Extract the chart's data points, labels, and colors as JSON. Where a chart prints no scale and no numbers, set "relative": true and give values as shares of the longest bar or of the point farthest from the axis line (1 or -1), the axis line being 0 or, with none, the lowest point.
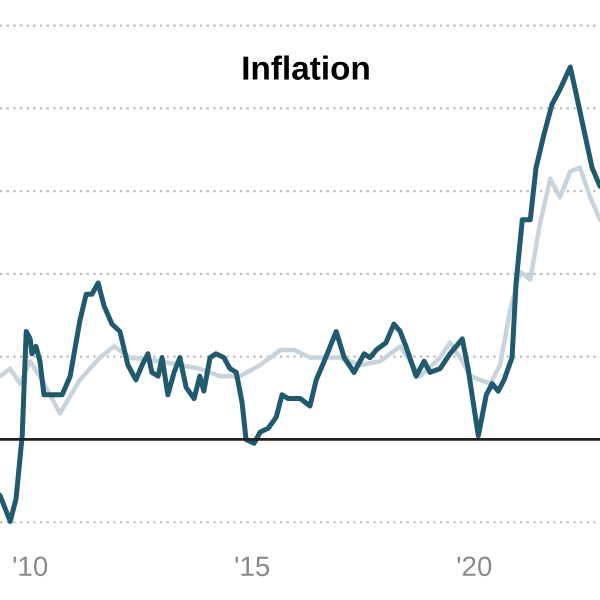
{
  "chart_data": {
    "type": "line",
    "title": "Inflation",
    "relative": true,
    "xlim": [
      2009.32,
      2022.83
    ],
    "xticks": [
      {
        "value": 2010,
        "label": "'10"
      },
      {
        "value": 2015,
        "label": "'15"
      },
      {
        "value": 2020,
        "label": "'20"
      }
    ],
    "grid": "y",
    "tick_labels": "x",
    "legend": false,
    "series": [
      {
        "color": "#c8d3dc",
        "x": [
          2009.32,
          2009.55,
          2009.77,
          2010.0,
          2010.31,
          2010.67,
          2011.12,
          2011.57,
          2011.89,
          2012.25,
          2012.92,
          2013.82,
          2014.27,
          2014.73,
          2015.18,
          2015.63,
          2015.95,
          2016.3,
          2016.98,
          2017.43,
          2017.88,
          2018.33,
          2018.78,
          2019.23,
          2019.45,
          2019.68,
          2019.91,
          2020.13,
          2020.36,
          2020.58,
          2020.81,
          2021.03,
          2021.26,
          2021.48,
          2021.71,
          2021.93,
          2022.16,
          2022.38,
          2022.61,
          2022.83
        ],
        "values": [
          0.17,
          0.19,
          0.15,
          0.21,
          0.15,
          0.07,
          0.16,
          0.22,
          0.25,
          0.22,
          0.21,
          0.19,
          0.17,
          0.17,
          0.2,
          0.24,
          0.24,
          0.22,
          0.22,
          0.2,
          0.21,
          0.25,
          0.17,
          0.22,
          0.26,
          0.22,
          0.17,
          0.16,
          0.15,
          0.2,
          0.35,
          0.45,
          0.43,
          0.58,
          0.7,
          0.65,
          0.72,
          0.73,
          0.65,
          0.59
        ]
      },
      {
        "color": "#1f5a6e",
        "x": [
          2009.32,
          2009.55,
          2009.68,
          2009.82,
          2009.91,
          2010.0,
          2010.04,
          2010.13,
          2010.22,
          2010.31,
          2010.54,
          2010.72,
          2010.9,
          2011.12,
          2011.26,
          2011.39,
          2011.53,
          2011.66,
          2011.84,
          2012.02,
          2012.2,
          2012.38,
          2012.52,
          2012.65,
          2012.74,
          2012.88,
          2012.97,
          2013.1,
          2013.24,
          2013.37,
          2013.51,
          2013.69,
          2013.82,
          2013.91,
          2014.05,
          2014.18,
          2014.36,
          2014.5,
          2014.64,
          2014.77,
          2014.86,
          2015.04,
          2015.18,
          2015.36,
          2015.54,
          2015.67,
          2015.81,
          2016.08,
          2016.3,
          2016.44,
          2016.62,
          2016.89,
          2017.07,
          2017.29,
          2017.52,
          2017.65,
          2017.79,
          2018.01,
          2018.19,
          2018.33,
          2018.46,
          2018.69,
          2018.87,
          2019.0,
          2019.23,
          2019.45,
          2019.73,
          2019.86,
          2020.09,
          2020.27,
          2020.4,
          2020.54,
          2020.67,
          2020.85,
          2020.94,
          2021.08,
          2021.26,
          2021.39,
          2021.57,
          2021.75,
          2021.93,
          2022.16,
          2022.29,
          2022.47,
          2022.65,
          2022.83
        ],
        "values": [
          -0.15,
          -0.22,
          -0.16,
          0.01,
          0.29,
          0.27,
          0.23,
          0.25,
          0.21,
          0.12,
          0.12,
          0.12,
          0.17,
          0.32,
          0.39,
          0.39,
          0.42,
          0.36,
          0.31,
          0.29,
          0.2,
          0.16,
          0.2,
          0.23,
          0.18,
          0.17,
          0.22,
          0.12,
          0.18,
          0.22,
          0.14,
          0.11,
          0.17,
          0.13,
          0.22,
          0.23,
          0.22,
          0.19,
          0.18,
          0.1,
          0.0,
          -0.01,
          0.02,
          0.03,
          0.06,
          0.12,
          0.11,
          0.11,
          0.09,
          0.16,
          0.21,
          0.29,
          0.22,
          0.18,
          0.23,
          0.22,
          0.24,
          0.26,
          0.31,
          0.29,
          0.25,
          0.17,
          0.21,
          0.18,
          0.19,
          0.23,
          0.27,
          0.19,
          0.01,
          0.12,
          0.15,
          0.13,
          0.16,
          0.22,
          0.42,
          0.59,
          0.59,
          0.73,
          0.82,
          0.9,
          0.94,
          1.0,
          0.93,
          0.83,
          0.73,
          0.68
        ]
      }
    ]
  }
}
